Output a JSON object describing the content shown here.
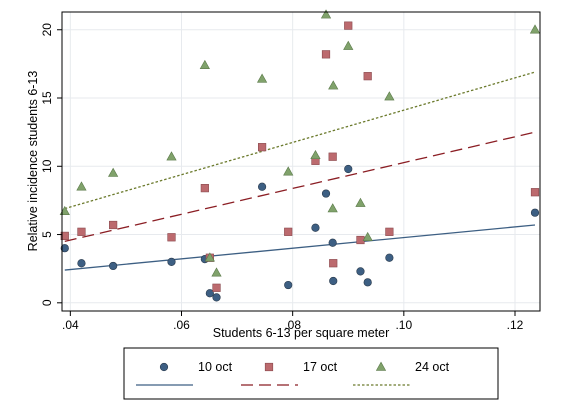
{
  "chart_data": {
    "type": "scatter",
    "xlabel": "Students 6-13 per square meter",
    "ylabel": "Relative incidence students 6-13",
    "xlim": [
      0.0385,
      0.1245
    ],
    "ylim": [
      -0.6,
      21.3
    ],
    "xticks": [
      0.04,
      0.06,
      0.08,
      0.1,
      0.12
    ],
    "xtick_labels": [
      ".04",
      ".06",
      ".08",
      ".10",
      ".12"
    ],
    "yticks": [
      0,
      5,
      10,
      15,
      20
    ],
    "ytick_labels": [
      "0",
      "5",
      "10",
      "15",
      "20"
    ],
    "grid": true,
    "legend_position": "bottom",
    "series": [
      {
        "name": "10 oct",
        "marker": "circle",
        "color": "#3d5f83",
        "points": [
          [
            0.039,
            4.0
          ],
          [
            0.042,
            2.9
          ],
          [
            0.0477,
            2.7
          ],
          [
            0.0582,
            3.0
          ],
          [
            0.0642,
            3.2
          ],
          [
            0.0651,
            0.7
          ],
          [
            0.0663,
            0.4
          ],
          [
            0.0745,
            8.5
          ],
          [
            0.0792,
            1.3
          ],
          [
            0.0841,
            5.5
          ],
          [
            0.086,
            8.0
          ],
          [
            0.0872,
            4.4
          ],
          [
            0.0873,
            1.6
          ],
          [
            0.09,
            9.8
          ],
          [
            0.0922,
            2.3
          ],
          [
            0.0935,
            1.5
          ],
          [
            0.0974,
            3.3
          ],
          [
            0.1236,
            6.6
          ]
        ],
        "fit": {
          "line_style": "solid",
          "color": "#3d5f83",
          "x": [
            0.039,
            0.1236
          ],
          "y": [
            2.4,
            5.7
          ]
        }
      },
      {
        "name": "17 oct",
        "marker": "square",
        "color": "#bc6a6e",
        "points": [
          [
            0.039,
            4.9
          ],
          [
            0.042,
            5.2
          ],
          [
            0.0477,
            5.7
          ],
          [
            0.0582,
            4.8
          ],
          [
            0.0642,
            8.4
          ],
          [
            0.0651,
            3.3
          ],
          [
            0.0663,
            1.1
          ],
          [
            0.0745,
            11.4
          ],
          [
            0.0792,
            5.2
          ],
          [
            0.0841,
            10.4
          ],
          [
            0.086,
            18.2
          ],
          [
            0.0872,
            10.7
          ],
          [
            0.0873,
            2.9
          ],
          [
            0.09,
            20.3
          ],
          [
            0.0922,
            4.6
          ],
          [
            0.0935,
            16.6
          ],
          [
            0.0974,
            5.2
          ],
          [
            0.1236,
            8.1
          ]
        ],
        "fit": {
          "line_style": "long-dash",
          "color": "#8b1e24",
          "x": [
            0.039,
            0.1236
          ],
          "y": [
            4.5,
            12.5
          ]
        }
      },
      {
        "name": "24 oct",
        "marker": "triangle",
        "color": "#80a26b",
        "points": [
          [
            0.039,
            6.7
          ],
          [
            0.042,
            8.5
          ],
          [
            0.0477,
            9.5
          ],
          [
            0.0582,
            10.7
          ],
          [
            0.0642,
            17.4
          ],
          [
            0.0651,
            3.3
          ],
          [
            0.0663,
            2.2
          ],
          [
            0.0745,
            16.4
          ],
          [
            0.0792,
            9.6
          ],
          [
            0.0841,
            10.8
          ],
          [
            0.086,
            21.1
          ],
          [
            0.0872,
            6.9
          ],
          [
            0.0873,
            15.9
          ],
          [
            0.09,
            18.8
          ],
          [
            0.0922,
            7.3
          ],
          [
            0.0935,
            4.8
          ],
          [
            0.0974,
            15.1
          ],
          [
            0.1236,
            20.0
          ]
        ],
        "fit": {
          "line_style": "dotted",
          "color": "#6b7a2c",
          "x": [
            0.039,
            0.1236
          ],
          "y": [
            6.9,
            16.9
          ]
        }
      }
    ]
  }
}
